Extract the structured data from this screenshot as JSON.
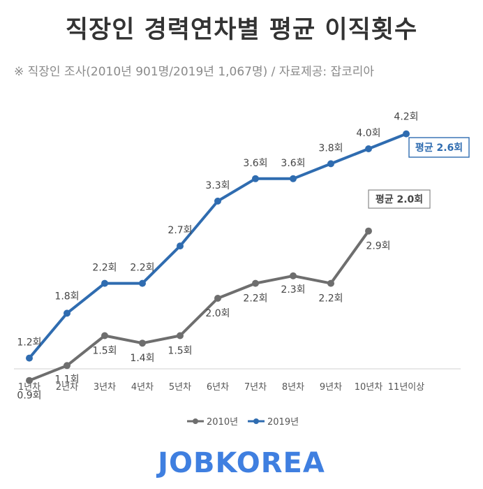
{
  "title": "직장인 경력연차별 평균 이직횟수",
  "subtitle": "※ 직장인 조사(2010년 901명/2019년 1,067명) / 자료제공: 잡코리아",
  "logo_text": "JOBKOREA",
  "colors": {
    "s2010": "#6e6e6e",
    "s2019": "#2f6cb0",
    "text": "#333333",
    "axis": "#e0e0e0"
  },
  "chart_data": {
    "type": "line",
    "categories": [
      "1년차",
      "2년차",
      "3년차",
      "4년차",
      "5년차",
      "6년차",
      "7년차",
      "8년차",
      "9년차",
      "10년차",
      "11년이상"
    ],
    "series": [
      {
        "name": "2010년",
        "values": [
          0.9,
          1.1,
          1.5,
          1.4,
          1.5,
          2.0,
          2.2,
          2.3,
          2.2,
          2.9,
          null
        ],
        "labels": [
          "0.9회",
          "1.1회",
          "1.5회",
          "1.4회",
          "1.5회",
          "2.0회",
          "2.2회",
          "2.3회",
          "2.2회",
          "2.9회",
          ""
        ]
      },
      {
        "name": "2019년",
        "values": [
          1.2,
          1.8,
          2.2,
          2.2,
          2.7,
          3.3,
          3.6,
          3.6,
          3.8,
          4.0,
          4.2
        ],
        "labels": [
          "1.2회",
          "1.8회",
          "2.2회",
          "2.2회",
          "2.7회",
          "3.3회",
          "3.6회",
          "3.6회",
          "3.8회",
          "4.0회",
          "4.2회"
        ]
      }
    ],
    "annotations": [
      {
        "series": "2010년",
        "text": "평균 2.0회"
      },
      {
        "series": "2019년",
        "text": "평균 2.6회"
      }
    ],
    "legend_position": "bottom",
    "grid": false
  }
}
